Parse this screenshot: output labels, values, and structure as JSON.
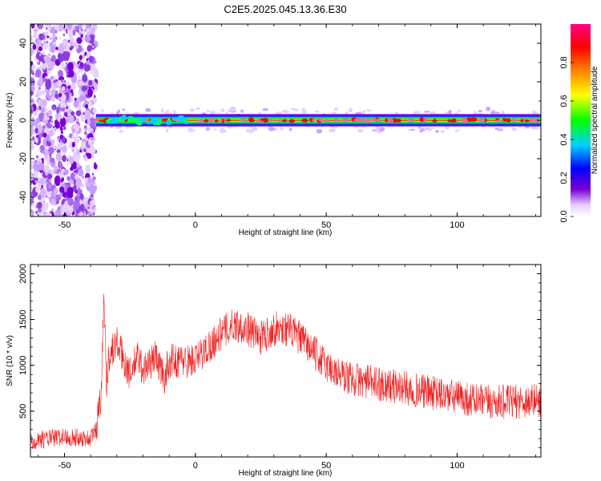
{
  "chart_data": [
    {
      "type": "heatmap",
      "title": "C2E5.2025.045.13.36.E30",
      "xlabel": "Height of straight line (km)",
      "ylabel": "Frequency (Hz)",
      "xlim": [
        -63,
        132
      ],
      "ylim": [
        -50,
        50
      ],
      "xticks": [
        -50,
        0,
        50,
        100
      ],
      "yticks": [
        -40,
        -20,
        0,
        20,
        40
      ],
      "noise_region_x": [
        -63,
        -38
      ],
      "signal_band": {
        "frequency_hz": 0,
        "half_width_hz": 2,
        "x_range": [
          -38,
          132
        ]
      },
      "colorbar": {
        "label": "Normalized spectral amplitude",
        "range": [
          0.0,
          1.0
        ],
        "ticks": [
          "0.0",
          "0.2",
          "0.4",
          "0.6",
          "0.8"
        ],
        "colors": [
          "#ffffff",
          "#7b00d4",
          "#0000ff",
          "#00d0ff",
          "#00ff00",
          "#ffff00",
          "#ff8000",
          "#ff0000",
          "#ff0080"
        ]
      }
    },
    {
      "type": "line",
      "xlabel": "Height of straight line (km)",
      "ylabel": "SNR (10 * v/v)",
      "xlim": [
        -63,
        132
      ],
      "ylim": [
        0,
        2100
      ],
      "xticks": [
        -50,
        0,
        50,
        100
      ],
      "yticks": [
        500,
        1000,
        1500,
        2000
      ],
      "color": "#ee2222",
      "series": [
        {
          "x": [
            -63,
            -50,
            -40,
            -38,
            -36,
            -35,
            -34,
            -33,
            -30,
            -25,
            -22,
            -20,
            -15,
            -12,
            -10,
            -5,
            0,
            5,
            10,
            15,
            20,
            25,
            30,
            35,
            40,
            45,
            50,
            55,
            60,
            70,
            80,
            90,
            100,
            110,
            120,
            132
          ],
          "values": [
            180,
            220,
            200,
            300,
            700,
            1800,
            800,
            1100,
            1250,
            900,
            1100,
            950,
            1100,
            850,
            1050,
            1050,
            1050,
            1200,
            1350,
            1450,
            1400,
            1300,
            1400,
            1400,
            1300,
            1150,
            1000,
            900,
            850,
            800,
            750,
            700,
            650,
            600,
            600,
            620
          ]
        }
      ]
    }
  ]
}
